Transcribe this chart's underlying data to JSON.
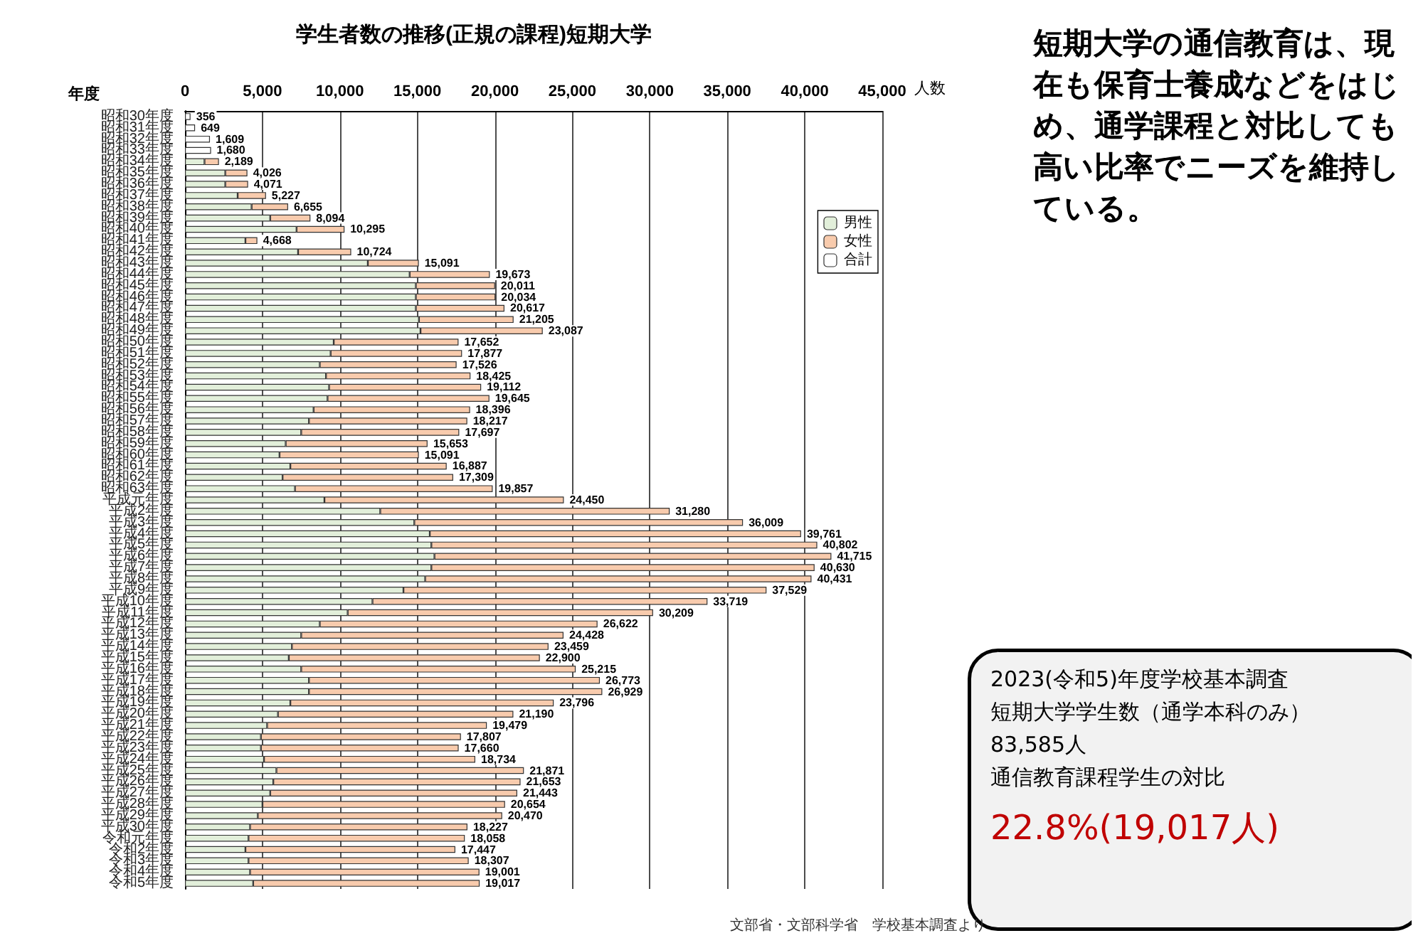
{
  "chart_data": {
    "type": "bar",
    "orientation": "horizontal",
    "stacked": true,
    "title": "学生者数の推移(正規の課程)短期大学",
    "xlabel": "人数",
    "ylabel": "年度",
    "categories": [
      "昭和30年度",
      "昭和31年度",
      "昭和32年度",
      "昭和33年度",
      "昭和34年度",
      "昭和35年度",
      "昭和36年度",
      "昭和37年度",
      "昭和38年度",
      "昭和39年度",
      "昭和40年度",
      "昭和41年度",
      "昭和42年度",
      "昭和43年度",
      "昭和44年度",
      "昭和45年度",
      "昭和46年度",
      "昭和47年度",
      "昭和48年度",
      "昭和49年度",
      "昭和50年度",
      "昭和51年度",
      "昭和52年度",
      "昭和53年度",
      "昭和54年度",
      "昭和55年度",
      "昭和56年度",
      "昭和57年度",
      "昭和58年度",
      "昭和59年度",
      "昭和60年度",
      "昭和61年度",
      "昭和62年度",
      "昭和63年度",
      "平成元年度",
      "平成2年度",
      "平成3年度",
      "平成4年度",
      "平成5年度",
      "平成6年度",
      "平成7年度",
      "平成8年度",
      "平成9年度",
      "平成10年度",
      "平成11年度",
      "平成12年度",
      "平成13年度",
      "平成14年度",
      "平成15年度",
      "平成16年度",
      "平成17年度",
      "平成18年度",
      "平成19年度",
      "平成20年度",
      "平成21年度",
      "平成22年度",
      "平成23年度",
      "平成24年度",
      "平成25年度",
      "平成26年度",
      "平成27年度",
      "平成28年度",
      "平成29年度",
      "平成30年度",
      "令和元年度",
      "令和2年度",
      "令和3年度",
      "令和4年度",
      "令和5年度"
    ],
    "series": [
      {
        "name": "男性",
        "color": "#e2efda",
        "values": [
          null,
          null,
          null,
          null,
          1260,
          2600,
          2600,
          3400,
          4300,
          5500,
          7200,
          3900,
          7300,
          11800,
          14500,
          14900,
          14900,
          14900,
          15100,
          15200,
          9600,
          9400,
          8700,
          9100,
          9300,
          9200,
          8300,
          8000,
          7500,
          6500,
          6100,
          6800,
          6300,
          7100,
          9000,
          12600,
          14800,
          15800,
          15900,
          16100,
          15900,
          15500,
          14100,
          12100,
          10500,
          8700,
          7500,
          6900,
          6700,
          7500,
          8000,
          8000,
          6800,
          6000,
          5300,
          4900,
          4900,
          5100,
          5900,
          5700,
          5500,
          5000,
          4700,
          4200,
          4100,
          3900,
          4100,
          4200,
          4400
        ]
      },
      {
        "name": "女性",
        "color": "#f8cbad",
        "values": [
          null,
          null,
          null,
          null,
          929,
          1426,
          1471,
          1827,
          2355,
          2594,
          3095,
          768,
          3424,
          3291,
          5173,
          5111,
          5134,
          5717,
          6105,
          7887,
          8052,
          8477,
          8826,
          9325,
          9812,
          10445,
          10096,
          10217,
          10197,
          9153,
          8991,
          10087,
          11009,
          12757,
          15450,
          18680,
          21209,
          23961,
          24902,
          25615,
          24730,
          24931,
          23429,
          21619,
          19709,
          17922,
          16928,
          16559,
          16200,
          17715,
          18773,
          18929,
          16996,
          15190,
          14179,
          12907,
          12760,
          13634,
          15971,
          15953,
          15943,
          15654,
          15770,
          14027,
          13958,
          13547,
          14207,
          14801,
          14617
        ]
      },
      {
        "name": "合計",
        "color": "#ffffff",
        "values": [
          356,
          649,
          1609,
          1680,
          null,
          null,
          null,
          null,
          null,
          null,
          null,
          null,
          null,
          null,
          null,
          null,
          null,
          null,
          null,
          null,
          null,
          null,
          null,
          null,
          null,
          null,
          null,
          null,
          null,
          null,
          null,
          null,
          null,
          null,
          null,
          null,
          null,
          null,
          null,
          null,
          null,
          null,
          null,
          null,
          null,
          null,
          null,
          null,
          null,
          null,
          null,
          null,
          null,
          null,
          null,
          null,
          null,
          null,
          null,
          null,
          null,
          null,
          null,
          null,
          null,
          null,
          null,
          null,
          null
        ]
      }
    ],
    "totals": [
      "356",
      "649",
      "1,609",
      "1,680",
      "2,189",
      "4,026",
      "4,071",
      "5,227",
      "6,655",
      "8,094",
      "10,295",
      "4,668",
      "10,724",
      "15,091",
      "19,673",
      "20,011",
      "20,034",
      "20,617",
      "21,205",
      "23,087",
      "17,652",
      "17,877",
      "17,526",
      "18,425",
      "19,112",
      "19,645",
      "18,396",
      "18,217",
      "17,697",
      "15,653",
      "15,091",
      "16,887",
      "17,309",
      "19,857",
      "24,450",
      "31,280",
      "36,009",
      "39,761",
      "40,802",
      "41,715",
      "40,630",
      "40,431",
      "37,529",
      "33,719",
      "30,209",
      "26,622",
      "24,428",
      "23,459",
      "22,900",
      "25,215",
      "26,773",
      "26,929",
      "23,796",
      "21,190",
      "19,479",
      "17,807",
      "17,660",
      "18,734",
      "21,871",
      "21,653",
      "21,443",
      "20,654",
      "20,470",
      "18,227",
      "18,058",
      "17,447",
      "18,307",
      "19,001",
      "19,017"
    ],
    "xlim": [
      0,
      45000
    ],
    "xticks": [
      0,
      {
        "value": 5000,
        "label": "5,000"
      },
      {
        "value": 10000,
        "label": "10,000"
      },
      {
        "value": 15000,
        "label": "15,000"
      },
      {
        "value": 20000,
        "label": "20,000"
      },
      {
        "value": 25000,
        "label": "25,000"
      },
      {
        "value": 30000,
        "label": "30,000"
      },
      {
        "value": 35000,
        "label": "35,000"
      },
      {
        "value": 40000,
        "label": "40,000"
      },
      {
        "value": 45000,
        "label": "45,000"
      }
    ],
    "grid": "x",
    "legend": "right",
    "annotations": [
      "短期大学の通信教育は、現在も保育士養成などをはじめ、通学課程と対比しても高い比率でニーズを維持している。",
      "2023(令和5)年度学校基本調査",
      "短期大学学生数（通学本科のみ）",
      "83,585人",
      "通信教育課程学生の対比",
      "22.8%(19,017人)",
      "文部省・文部科学省　学校基本調査より"
    ]
  }
}
